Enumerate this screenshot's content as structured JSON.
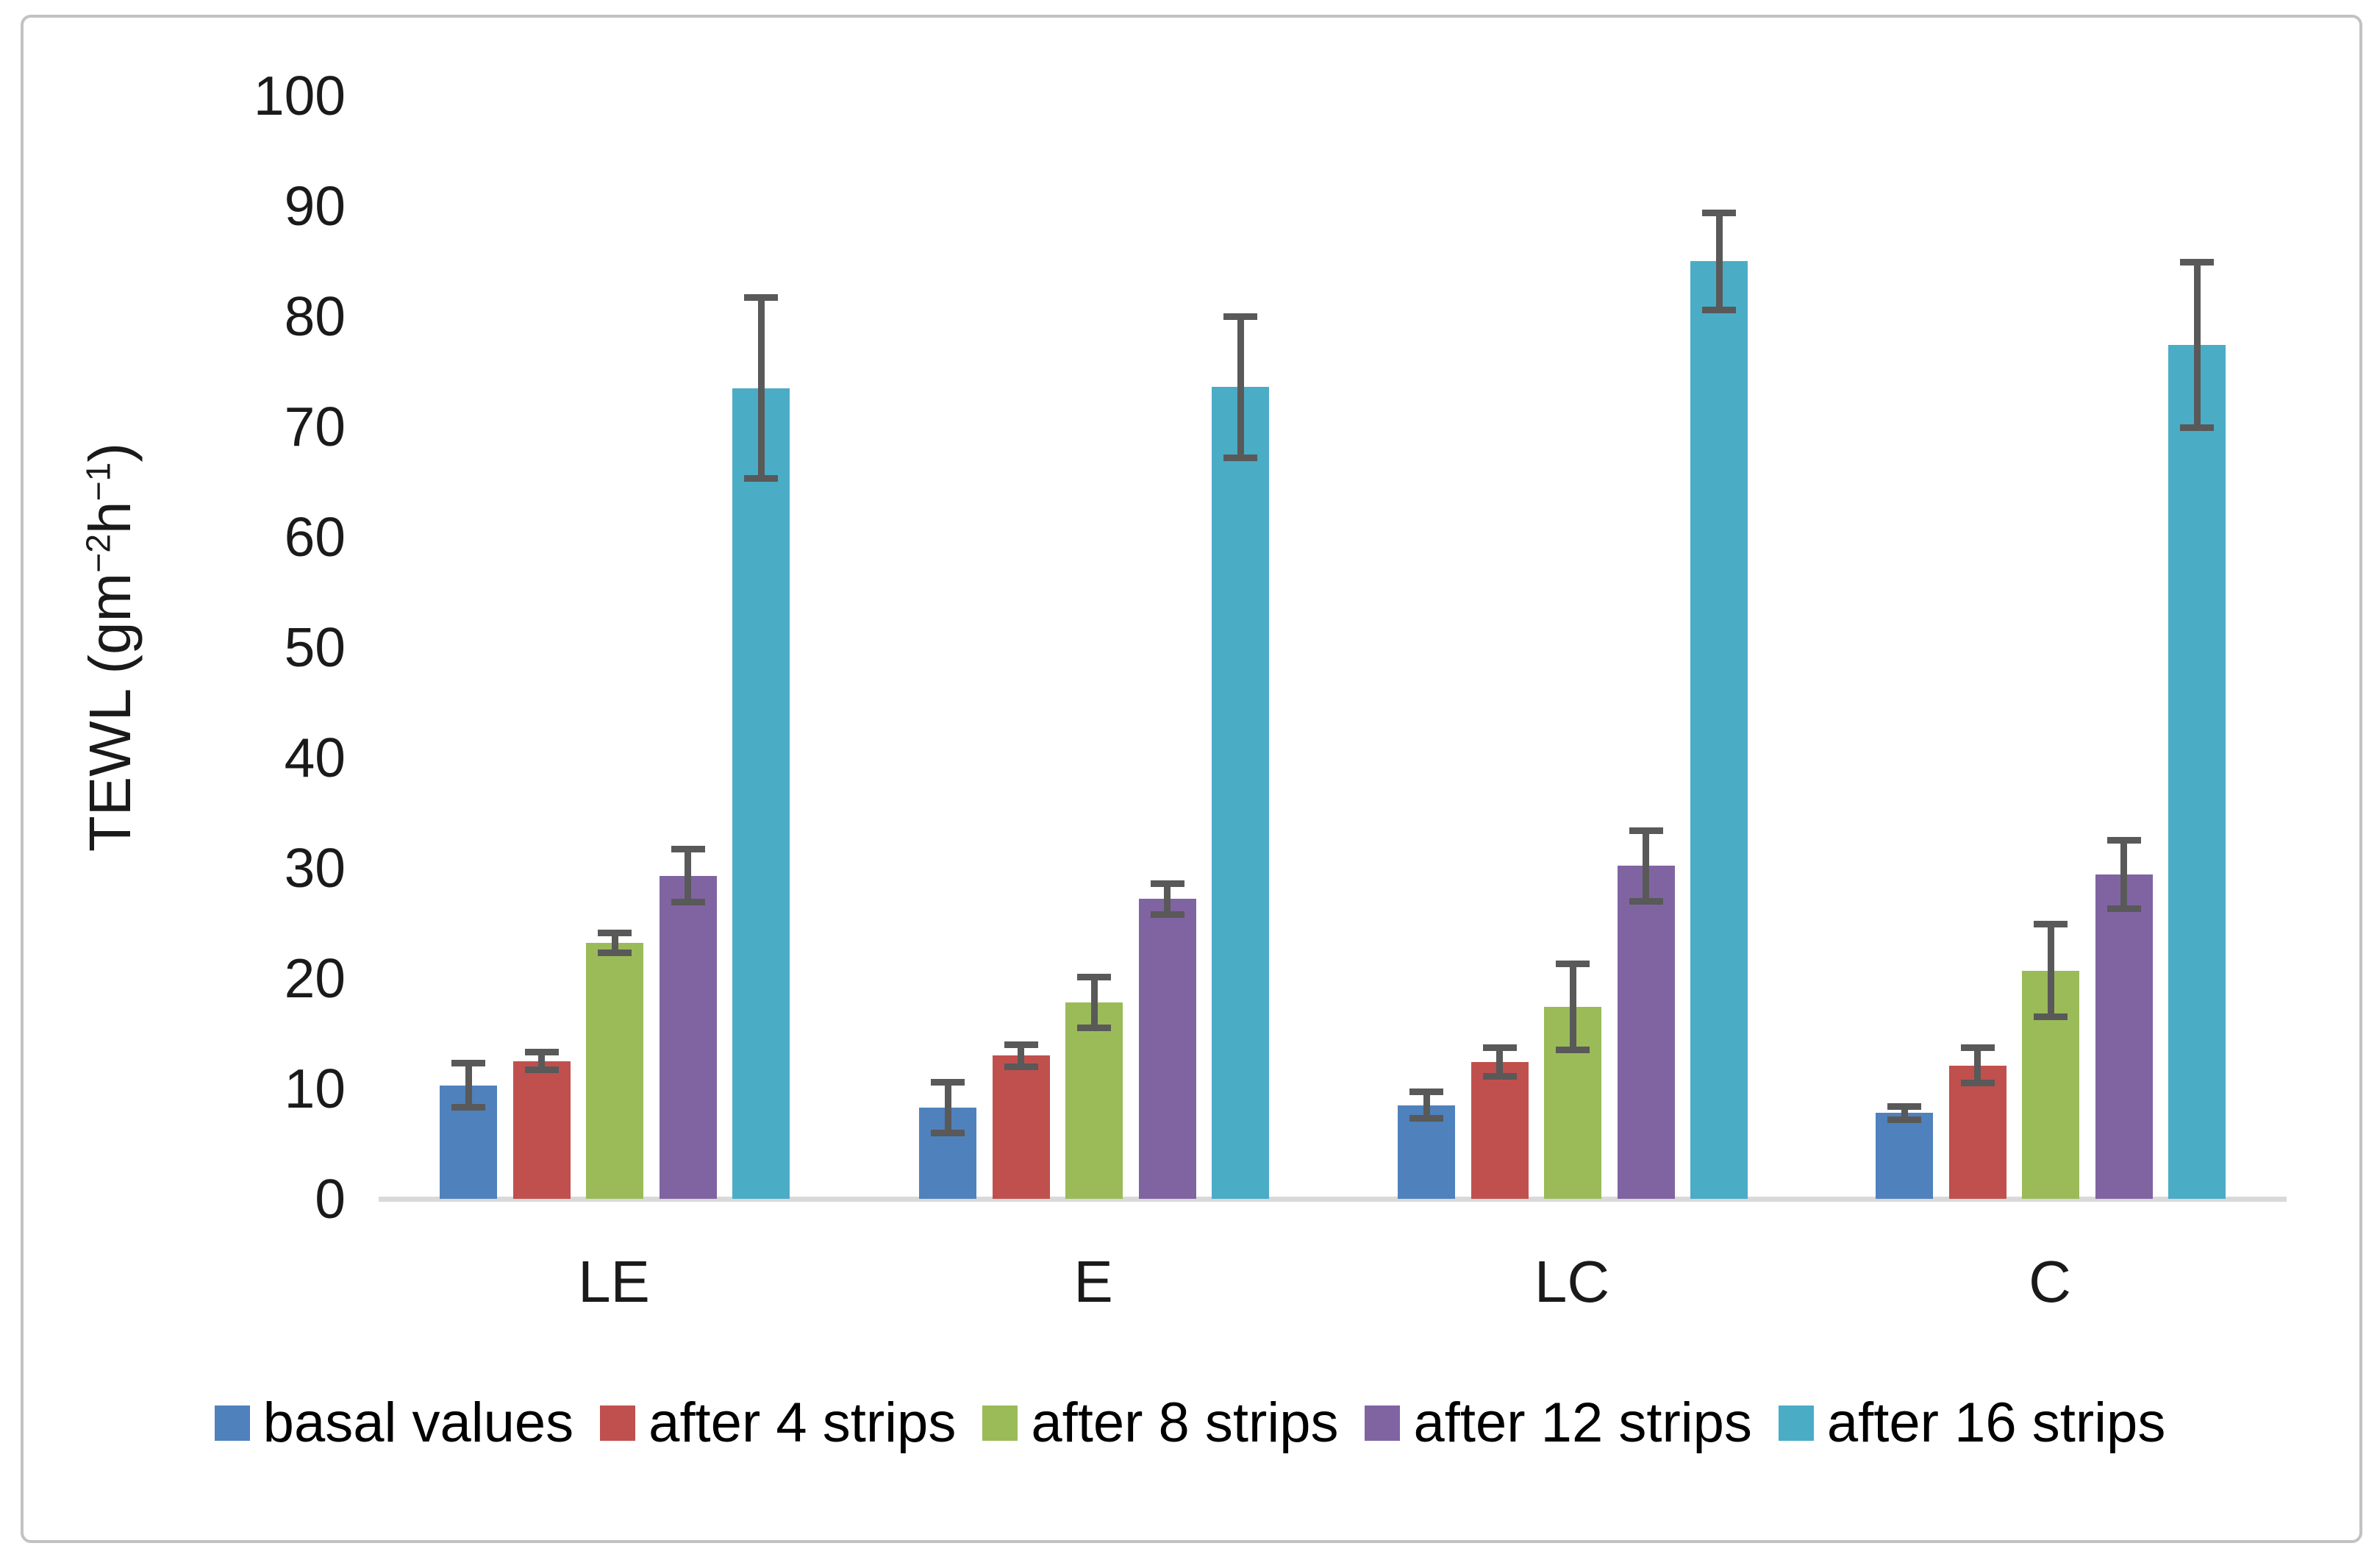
{
  "figure": {
    "background": "#ffffff",
    "border_color": "#c2c2c2"
  },
  "chart_data": {
    "type": "bar",
    "categories": [
      "LE",
      "E",
      "LC",
      "C"
    ],
    "series": [
      {
        "name": "basal values",
        "color": "#4f81bd",
        "values": [
          10.3,
          8.3,
          8.5,
          7.8
        ],
        "errors": [
          2.0,
          2.3,
          1.2,
          0.6
        ]
      },
      {
        "name": "after 4 strips",
        "color": "#c0504d",
        "values": [
          12.5,
          13.0,
          12.4,
          12.1
        ],
        "errors": [
          0.8,
          1.0,
          1.3,
          1.6
        ]
      },
      {
        "name": "after 8 strips",
        "color": "#9bbb59",
        "values": [
          23.2,
          17.8,
          17.4,
          20.7
        ],
        "errors": [
          0.9,
          2.3,
          3.9,
          4.2
        ]
      },
      {
        "name": "after 12 strips",
        "color": "#8064a2",
        "values": [
          29.3,
          27.2,
          30.2,
          29.4
        ],
        "errors": [
          2.4,
          1.4,
          3.2,
          3.1
        ]
      },
      {
        "name": "after 16 strips",
        "color": "#4bacc6",
        "values": [
          73.5,
          73.6,
          85.0,
          77.4
        ],
        "errors": [
          8.2,
          6.4,
          4.4,
          7.5
        ]
      }
    ],
    "xlabel": "",
    "ylabel": "TEWL (gm−2h−1)",
    "ylabel_parts": {
      "prefix": "TEWL (gm",
      "sup1": "−2",
      "mid": "h",
      "sup2": "−1",
      "suffix": ")"
    },
    "ylim": [
      0,
      100
    ],
    "yticks": [
      0,
      10,
      20,
      30,
      40,
      50,
      60,
      70,
      80,
      90,
      100
    ],
    "grid": false,
    "error_bars": true,
    "error_bar_color": "#595959",
    "axis_line_color": "#d9d9d9",
    "legend_position": "bottom"
  }
}
